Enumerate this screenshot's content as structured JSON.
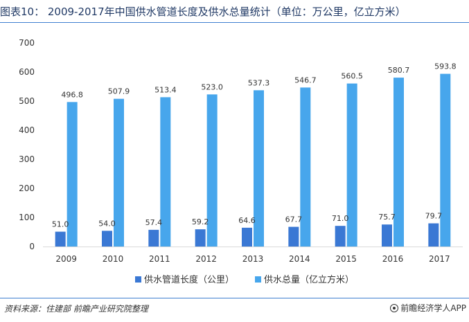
{
  "header": {
    "title": "图表10： 2009-2017年中国供水管道长度及供水总量统计（单位：万公里，亿立方米）"
  },
  "footer": {
    "source": "资料来源：住建部 前瞻产业研究院整理",
    "brand": "前瞻经济学人APP"
  },
  "colors": {
    "series1": "#3a78d4",
    "series2": "#47a6ec",
    "rule": "#3f7fd0"
  },
  "chart_data": {
    "type": "bar",
    "title": "",
    "xlabel": "",
    "ylabel": "",
    "categories": [
      "2009",
      "2010",
      "2011",
      "2012",
      "2013",
      "2014",
      "2015",
      "2016",
      "2017"
    ],
    "ylim": [
      0,
      700
    ],
    "yticks": [
      0,
      100,
      200,
      300,
      400,
      500,
      600,
      700
    ],
    "grid": false,
    "legend_position": "bottom",
    "series": [
      {
        "name": "供水管道长度（公里）",
        "values": [
          51.0,
          54.0,
          57.4,
          59.2,
          64.6,
          67.7,
          71.0,
          75.7,
          79.7
        ],
        "labels": [
          "51.0",
          "54.0",
          "57.4",
          "59.2",
          "64.6",
          "67.7",
          "71.0",
          "75.7",
          "79.7"
        ]
      },
      {
        "name": "供水总量（亿立方米）",
        "values": [
          496.8,
          507.9,
          513.4,
          523.0,
          537.3,
          546.7,
          560.5,
          580.7,
          593.8
        ],
        "labels": [
          "496.8",
          "507.9",
          "513.4",
          "523.0",
          "537.3",
          "546.7",
          "560.5",
          "580.7",
          "593.8"
        ]
      }
    ]
  }
}
